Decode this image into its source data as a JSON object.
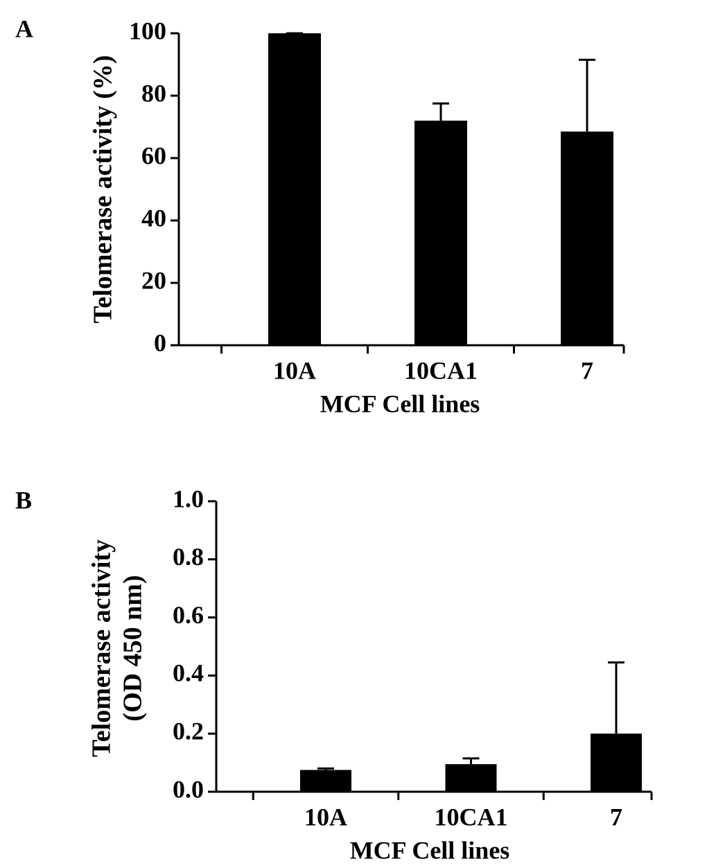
{
  "chart_data": [
    {
      "type": "bar",
      "panel_label": "A",
      "y_label": [
        "Telomerase activity (%)"
      ],
      "x_label": "MCF Cell lines",
      "categories": [
        "10A",
        "10CA1",
        "7"
      ],
      "values": [
        100,
        72,
        68.5
      ],
      "errors": [
        0,
        5.5,
        23
      ],
      "color": "#000000",
      "ylim": [
        0,
        100
      ],
      "yticks": [
        0,
        20,
        40,
        60,
        80,
        100
      ]
    },
    {
      "type": "bar",
      "panel_label": "B",
      "y_label": [
        "Telomerase activity",
        "(OD 450 nm)"
      ],
      "x_label": "MCF Cell lines",
      "categories": [
        "10A",
        "10CA1",
        "7"
      ],
      "values": [
        0.075,
        0.095,
        0.2
      ],
      "errors": [
        0.005,
        0.02,
        0.245
      ],
      "color": "#000000",
      "ylim": [
        0,
        1
      ],
      "yticks": [
        {
          "value": 0,
          "label": "0.0"
        },
        0.2,
        0.4,
        0.6,
        0.8,
        {
          "value": 1,
          "label": "1.0"
        }
      ]
    }
  ]
}
